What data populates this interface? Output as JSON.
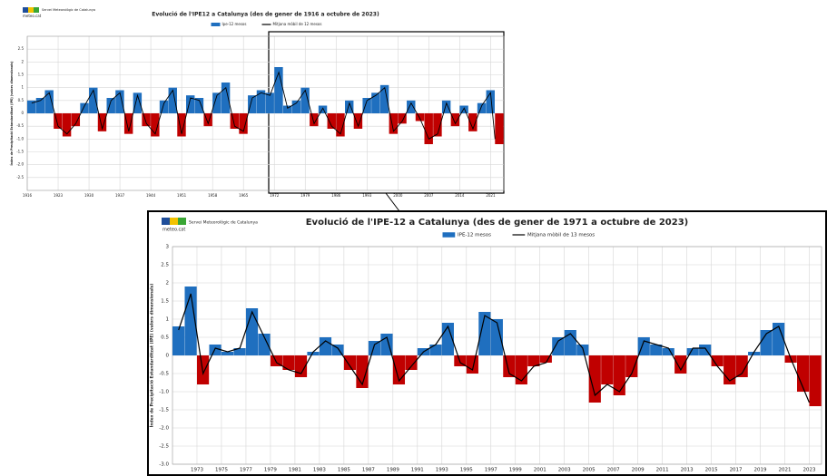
{
  "logo": {
    "name": "Servei Meteorològic de Catalunya",
    "site": "meteo.cat"
  },
  "chart_data": [
    {
      "type": "bar",
      "title": "Evolució de l'IPE12 a Catalunya (des de gener de 1916 a octubre de 2023)",
      "y_label": "Índex de Precipitació Estandarditzat (IPE) (valors dimensionals)",
      "x": [
        1916,
        1918,
        1920,
        1922,
        1924,
        1926,
        1928,
        1930,
        1932,
        1934,
        1936,
        1938,
        1940,
        1942,
        1944,
        1946,
        1948,
        1950,
        1952,
        1954,
        1956,
        1958,
        1960,
        1962,
        1964,
        1966,
        1968,
        1970,
        1972,
        1974,
        1976,
        1978,
        1980,
        1982,
        1984,
        1986,
        1988,
        1990,
        1992,
        1994,
        1996,
        1998,
        2000,
        2002,
        2004,
        2006,
        2008,
        2010,
        2012,
        2014,
        2016,
        2018,
        2020,
        2022
      ],
      "series": [
        {
          "name": "Ipe-12 mesos",
          "color": "#1f6fbf",
          "negative_color": "#c00000",
          "values": [
            0.5,
            0.6,
            0.9,
            -0.6,
            -0.9,
            -0.5,
            0.4,
            1.0,
            -0.7,
            0.6,
            0.9,
            -0.8,
            0.8,
            -0.5,
            -0.9,
            0.5,
            1.0,
            -0.9,
            0.7,
            0.6,
            -0.5,
            0.8,
            1.2,
            -0.6,
            -0.8,
            0.7,
            0.9,
            0.8,
            1.8,
            0.3,
            0.5,
            1.0,
            -0.5,
            0.3,
            -0.6,
            -0.9,
            0.5,
            -0.6,
            0.6,
            0.8,
            1.1,
            -0.8,
            -0.4,
            0.5,
            -0.3,
            -1.2,
            -0.9,
            0.5,
            -0.5,
            0.3,
            -0.7,
            0.4,
            0.9,
            -1.2
          ]
        },
        {
          "name": "Mitjana mòbil de 12 mesos",
          "color": "#000000",
          "values": [
            0.4,
            0.5,
            0.8,
            -0.5,
            -0.8,
            -0.4,
            0.3,
            0.9,
            -0.6,
            0.5,
            0.8,
            -0.7,
            0.7,
            -0.4,
            -0.8,
            0.4,
            0.9,
            -0.8,
            0.6,
            0.5,
            -0.4,
            0.7,
            1.0,
            -0.5,
            -0.7,
            0.6,
            0.8,
            0.7,
            1.6,
            0.2,
            0.4,
            0.9,
            -0.4,
            0.2,
            -0.5,
            -0.8,
            0.4,
            -0.5,
            0.5,
            0.7,
            1.0,
            -0.7,
            -0.3,
            0.4,
            -0.2,
            -1.0,
            -0.8,
            0.4,
            -0.4,
            0.2,
            -0.6,
            0.3,
            0.8,
            -1.0
          ]
        }
      ],
      "xlim": [
        1916,
        2024
      ],
      "ylim": [
        -3,
        3
      ],
      "xticks": [
        1916,
        1923,
        1930,
        1937,
        1944,
        1951,
        1958,
        1965,
        1972,
        1979,
        1986,
        1993,
        2000,
        2007,
        2014,
        2021
      ],
      "yticks": [
        2.5,
        2,
        1.5,
        1,
        0.5,
        0,
        -0.5,
        {
          "value": -1,
          "label": "-1.0"
        },
        -1.5,
        {
          "value": -2,
          "label": "-2.0"
        },
        -2.5
      ],
      "grid": true
    },
    {
      "type": "bar",
      "title": "Evolució de l'IPE-12 a Catalunya (des de gener de 1971 a octubre de 2023)",
      "y_label": "Índex de Precipitació Estandarditzat (IPE) (valors dimensionals)",
      "x": [
        1971,
        1972,
        1973,
        1974,
        1975,
        1976,
        1977,
        1978,
        1979,
        1980,
        1981,
        1982,
        1983,
        1984,
        1985,
        1986,
        1987,
        1988,
        1989,
        1990,
        1991,
        1992,
        1993,
        1994,
        1995,
        1996,
        1997,
        1998,
        1999,
        2000,
        2001,
        2002,
        2003,
        2004,
        2005,
        2006,
        2007,
        2008,
        2009,
        2010,
        2011,
        2012,
        2013,
        2014,
        2015,
        2016,
        2017,
        2018,
        2019,
        2020,
        2021,
        2022,
        2023
      ],
      "series": [
        {
          "name": "IPE-12 mesos",
          "color": "#1f6fbf",
          "negative_color": "#c00000",
          "values": [
            0.8,
            1.9,
            -0.8,
            0.3,
            0.1,
            0.2,
            1.3,
            0.6,
            -0.3,
            -0.4,
            -0.6,
            0.1,
            0.5,
            0.3,
            -0.4,
            -0.9,
            0.4,
            0.6,
            -0.8,
            -0.4,
            0.2,
            0.3,
            0.9,
            -0.3,
            -0.5,
            1.2,
            1.0,
            -0.6,
            -0.8,
            -0.3,
            -0.2,
            0.5,
            0.7,
            0.3,
            -1.3,
            -0.8,
            -1.1,
            -0.6,
            0.5,
            0.3,
            0.2,
            -0.5,
            0.2,
            0.3,
            -0.3,
            -0.8,
            -0.6,
            0.1,
            0.7,
            0.9,
            -0.2,
            -1.0,
            -1.4
          ]
        },
        {
          "name": "Mitjana mòbil de 13 mesos",
          "color": "#000000",
          "values": [
            0.7,
            1.7,
            -0.5,
            0.2,
            0.1,
            0.2,
            1.2,
            0.5,
            -0.2,
            -0.4,
            -0.5,
            0.1,
            0.4,
            0.2,
            -0.3,
            -0.8,
            0.3,
            0.5,
            -0.7,
            -0.3,
            0.1,
            0.3,
            0.8,
            -0.2,
            -0.4,
            1.1,
            0.9,
            -0.5,
            -0.7,
            -0.3,
            -0.2,
            0.4,
            0.6,
            0.2,
            -1.1,
            -0.8,
            -1.0,
            -0.5,
            0.4,
            0.3,
            0.2,
            -0.4,
            0.2,
            0.2,
            -0.3,
            -0.7,
            -0.5,
            0.1,
            0.6,
            0.8,
            -0.1,
            -0.9,
            -1.3
          ]
        }
      ],
      "xlim": [
        1971,
        2024
      ],
      "ylim": [
        -3,
        3
      ],
      "xticks": [
        1973,
        1975,
        1977,
        1979,
        1981,
        1983,
        1985,
        1987,
        1989,
        1991,
        1993,
        1995,
        1997,
        1999,
        2001,
        2003,
        2005,
        2007,
        2009,
        2011,
        2013,
        2015,
        2017,
        2019,
        2021,
        2023
      ],
      "yticks": [
        3,
        2.5,
        2,
        1.5,
        1,
        0.5,
        0,
        -0.5,
        {
          "value": -1,
          "label": "-1.0"
        },
        -1.5,
        {
          "value": -2,
          "label": "-2.0"
        },
        -2.5,
        {
          "value": -3,
          "label": "-3.0"
        }
      ],
      "grid": true
    }
  ]
}
